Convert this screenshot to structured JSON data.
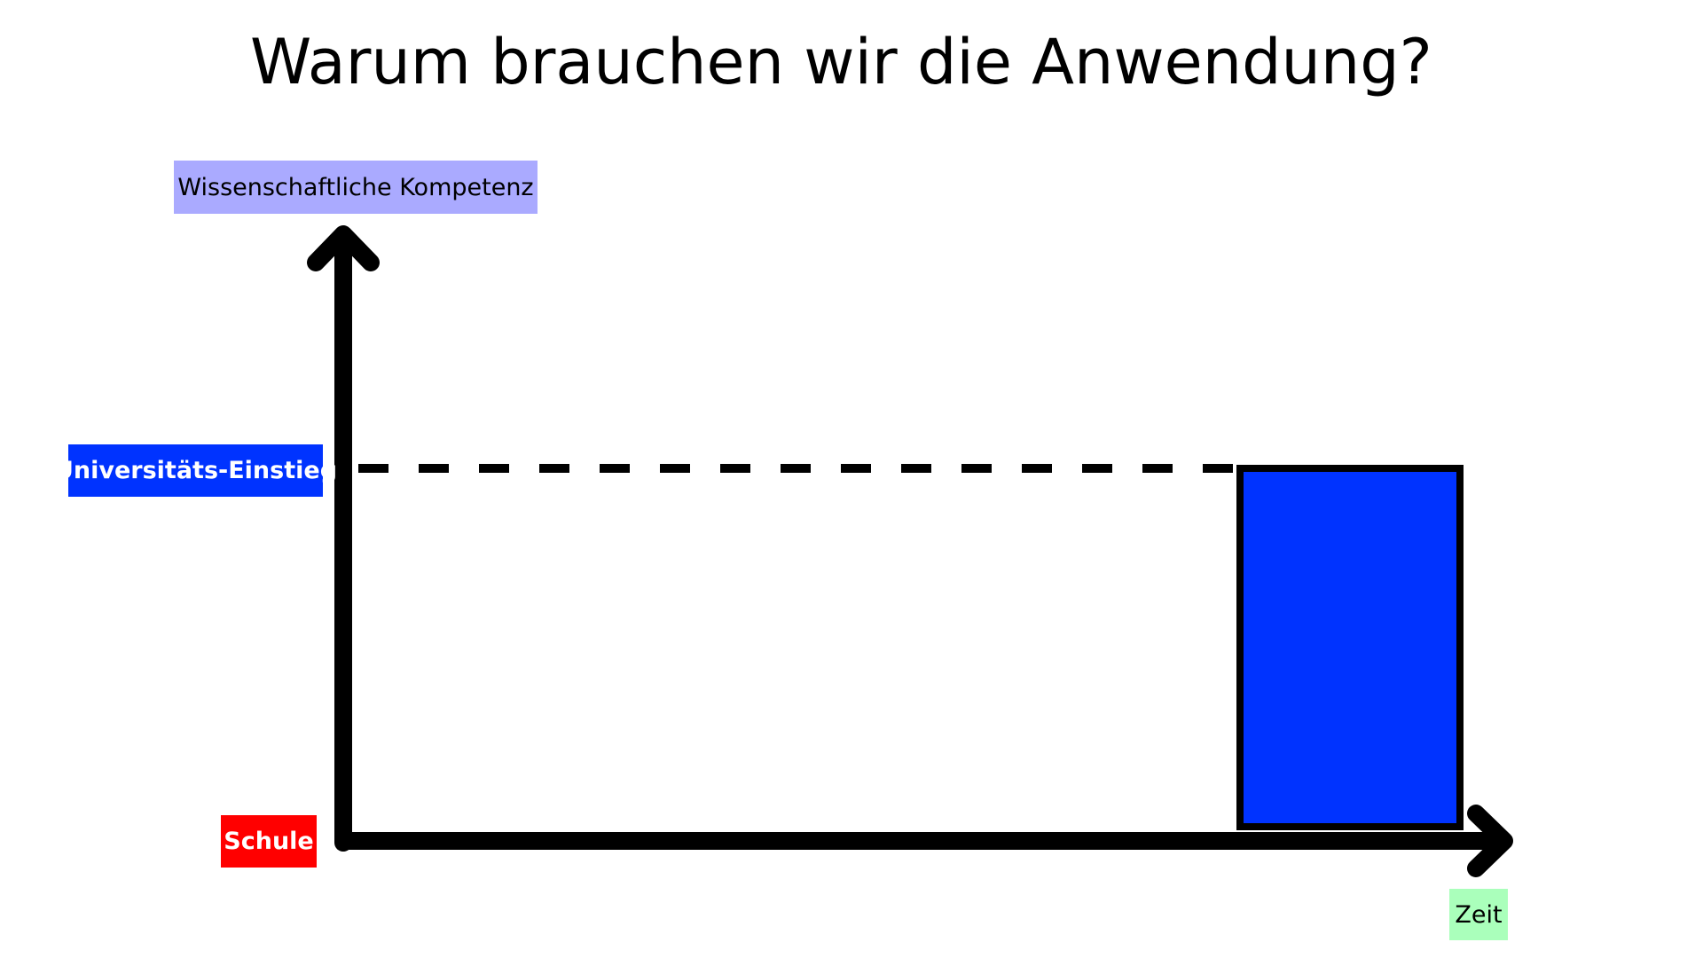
{
  "title": "Warum brauchen wir die Anwendung?",
  "labels": {
    "y_axis": "Wissenschaftliche Kompetenz",
    "university_entry": "Universitäts-Einstieg",
    "school": "Schule",
    "x_axis": "Zeit"
  },
  "colors": {
    "y_axis_label_bg": "#aaaaff",
    "university_label_bg": "#0033ff",
    "school_label_bg": "#ff0000",
    "time_label_bg": "#aaffbb",
    "bar_fill": "#0033ff",
    "axis": "#000000"
  }
}
